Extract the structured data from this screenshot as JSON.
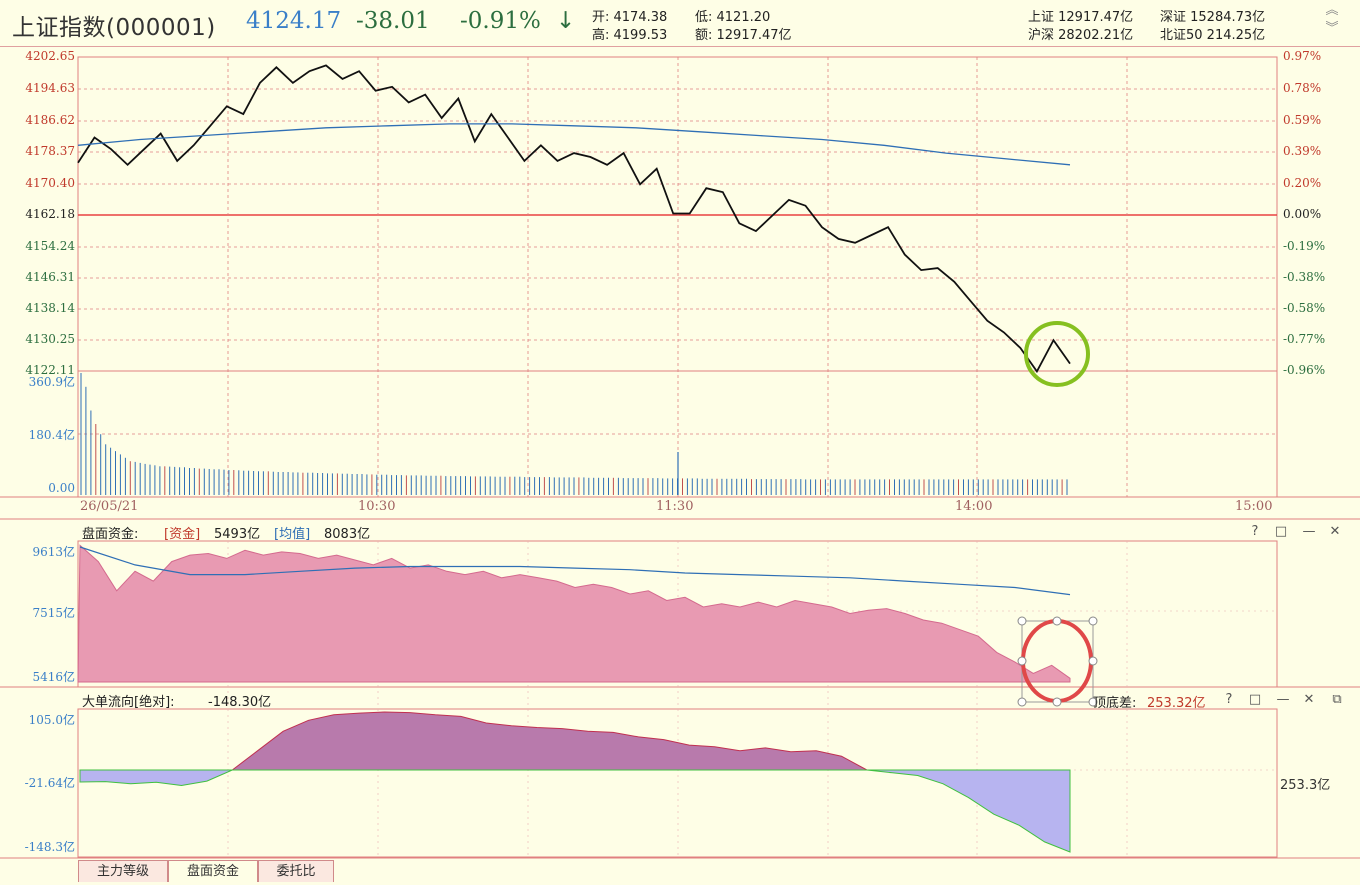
{
  "header": {
    "title": "上证指数(000001)",
    "price": "4124.17",
    "change": "-38.01",
    "change_pct": "-0.91%",
    "arrow": "↓",
    "open": "开: 4174.38",
    "low": "低: 4121.20",
    "high": "高: 4199.53",
    "amount": "额: 12917.47亿",
    "market": {
      "sh": "上证 12917.47亿",
      "sz": "深证 15284.73亿",
      "hs": "沪深 28202.21亿",
      "bz": "北证50 214.25亿"
    }
  },
  "price_axis": {
    "left": [
      "4202.65",
      "4194.63",
      "4186.62",
      "4178.37",
      "4170.40",
      "4162.18",
      "4154.24",
      "4146.31",
      "4138.14",
      "4130.25",
      "4122.11"
    ],
    "right": [
      "0.97%",
      "0.78%",
      "0.59%",
      "0.39%",
      "0.20%",
      "0.00%",
      "-0.19%",
      "-0.38%",
      "-0.58%",
      "-0.77%",
      "-0.96%"
    ],
    "base": 4162.18,
    "ylim": [
      4122.11,
      4202.65
    ]
  },
  "volume_axis": [
    "360.9亿",
    "180.4亿",
    "0.00"
  ],
  "time_axis": [
    "26/05/21",
    "10:30",
    "11:30",
    "14:00",
    "15:00"
  ],
  "panel1": {
    "label": "盘面资金:",
    "fund_tag": "[资金]",
    "fund_value": "5493亿",
    "avg_tag": "[均值]",
    "avg_value": "8083亿",
    "axis": [
      "9613亿",
      "7515亿",
      "5416亿"
    ]
  },
  "panel2": {
    "label": "大单流向[绝对]:",
    "value": "-148.30亿",
    "axis": [
      "105.0亿",
      "-21.64亿",
      "-148.3亿"
    ],
    "peak_label": "顶底差:",
    "peak_value": "253.32亿",
    "right_value": "253.3亿"
  },
  "tabs": [
    "主力等级",
    "盘面资金",
    "委托比"
  ],
  "colors": {
    "up": "#c0392b",
    "down": "#2c6e3f",
    "blue": "#3a7fc8",
    "grid": "#e07070",
    "area1": "#e89ab2",
    "area2_pos": "#b87aac",
    "area2_neg": "#b7b4f0",
    "avg": "#2f6fb5",
    "circle_green": "#86c020",
    "circle_red": "#e04848"
  },
  "chart_data": [
    {
      "type": "line",
      "series": [
        {
          "name": "price",
          "values": [
            4175.5,
            4182.0,
            4179.0,
            4175.0,
            4179.0,
            4183.0,
            4176.0,
            4180.0,
            4185.0,
            4190.0,
            4188.0,
            4196.0,
            4200.0,
            4196.0,
            4199.0,
            4200.5,
            4197.0,
            4199.0,
            4194.0,
            4195.0,
            4191.0,
            4193.0,
            4187.0,
            4192.0,
            4181.0,
            4188.0,
            4182.0,
            4176.0,
            4180.0,
            4176.0,
            4178.0,
            4177.0,
            4175.0,
            4178.0,
            4170.0,
            4174.0,
            4162.5,
            4162.5,
            4169.0,
            4168.0,
            4160.0,
            4158.0,
            4162.0,
            4166.0,
            4164.5,
            4159.0,
            4156.0,
            4155.0,
            4157.0,
            4159.0,
            4152.0,
            4148.0,
            4148.5,
            4145.0,
            4140.0,
            4135.0,
            4132.0,
            4128.0,
            4122.0,
            4130.0,
            4124.0
          ]
        },
        {
          "name": "avg",
          "values": [
            4180.0,
            4181.5,
            4182.5,
            4183.5,
            4184.5,
            4185.0,
            4185.5,
            4185.5,
            4185.0,
            4184.5,
            4183.5,
            4182.5,
            4181.5,
            4180.0,
            4178.0,
            4176.5,
            4175.0
          ]
        }
      ],
      "ylim": [
        4122.11,
        4202.65
      ]
    },
    {
      "type": "bar",
      "values": [
        360.9,
        320,
        250,
        210,
        180,
        150,
        140,
        130,
        120,
        110,
        100,
        98,
        95,
        92,
        90,
        88,
        85,
        85,
        84,
        83,
        82,
        82,
        80,
        80,
        78,
        78,
        77,
        76,
        76,
        75,
        74,
        74,
        73,
        72,
        72,
        71,
        70,
        70,
        70,
        69,
        68,
        68,
        68,
        67,
        67,
        66,
        66,
        66,
        65,
        65,
        64,
        64,
        64,
        63,
        63,
        62,
        62,
        62,
        61,
        61,
        60,
        60,
        60,
        59,
        59,
        59,
        58,
        58,
        58,
        58,
        57,
        57,
        57,
        57,
        56,
        56,
        56,
        56,
        56,
        55,
        55,
        55,
        55,
        55,
        54,
        54,
        54,
        54,
        54,
        54,
        53,
        53,
        53,
        53,
        53,
        53,
        52,
        52,
        52,
        52,
        52,
        52,
        52,
        51,
        51,
        51,
        51,
        51,
        51,
        51,
        50,
        50,
        50,
        50,
        50,
        50,
        50,
        50,
        49,
        49,
        49,
        49,
        49,
        49,
        49,
        49,
        48,
        48,
        48,
        48,
        48,
        48,
        48,
        48,
        48,
        48,
        47,
        47,
        47,
        47,
        47,
        47,
        47,
        47,
        47,
        47,
        47,
        46,
        46,
        46,
        46,
        46,
        46,
        46,
        46,
        46,
        46,
        46,
        46,
        46,
        46,
        46,
        46,
        46,
        46,
        46,
        46,
        46,
        46,
        46,
        46,
        46,
        46,
        46,
        46,
        46,
        46,
        46,
        46,
        46,
        46,
        46,
        46,
        46,
        46,
        46,
        46,
        46,
        46,
        46,
        46,
        46,
        46,
        46,
        46,
        46,
        46,
        46,
        46,
        46,
        46
      ],
      "ylim": [
        0,
        360.9
      ]
    },
    {
      "type": "area",
      "series": [
        {
          "name": "资金",
          "values": [
            9600,
            9100,
            8200,
            8800,
            8500,
            9100,
            9300,
            9350,
            9200,
            9450,
            9300,
            9400,
            9350,
            9200,
            9300,
            9150,
            9000,
            9200,
            8900,
            9000,
            8800,
            8700,
            8800,
            8600,
            8700,
            8600,
            8500,
            8300,
            8400,
            8300,
            8100,
            8200,
            7900,
            8000,
            7700,
            7800,
            7700,
            7850,
            7700,
            7900,
            7800,
            7700,
            7500,
            7600,
            7650,
            7500,
            7300,
            7200,
            7000,
            6800,
            6300,
            6000,
            5650,
            5900,
            5500
          ]
        },
        {
          "name": "均值",
          "values": [
            9550,
            9000,
            8700,
            8700,
            8800,
            8900,
            8950,
            8950,
            8950,
            8900,
            8850,
            8750,
            8700,
            8650,
            8600,
            8500,
            8400,
            8300,
            8083
          ]
        }
      ],
      "ylim": [
        5416,
        9613
      ]
    },
    {
      "type": "area",
      "series": [
        {
          "name": "大单流向",
          "values": [
            -21.64,
            -21,
            -25,
            -22,
            -28,
            -20,
            0,
            35,
            70,
            90,
            100,
            103,
            105,
            104,
            100,
            97,
            85,
            80,
            77,
            75,
            70,
            68,
            60,
            55,
            45,
            42,
            35,
            40,
            33,
            35,
            25,
            0,
            -5,
            -10,
            -25,
            -50,
            -80,
            -100,
            -130,
            -148.3
          ]
        }
      ],
      "ylim": [
        -148.3,
        105.0
      ]
    }
  ]
}
